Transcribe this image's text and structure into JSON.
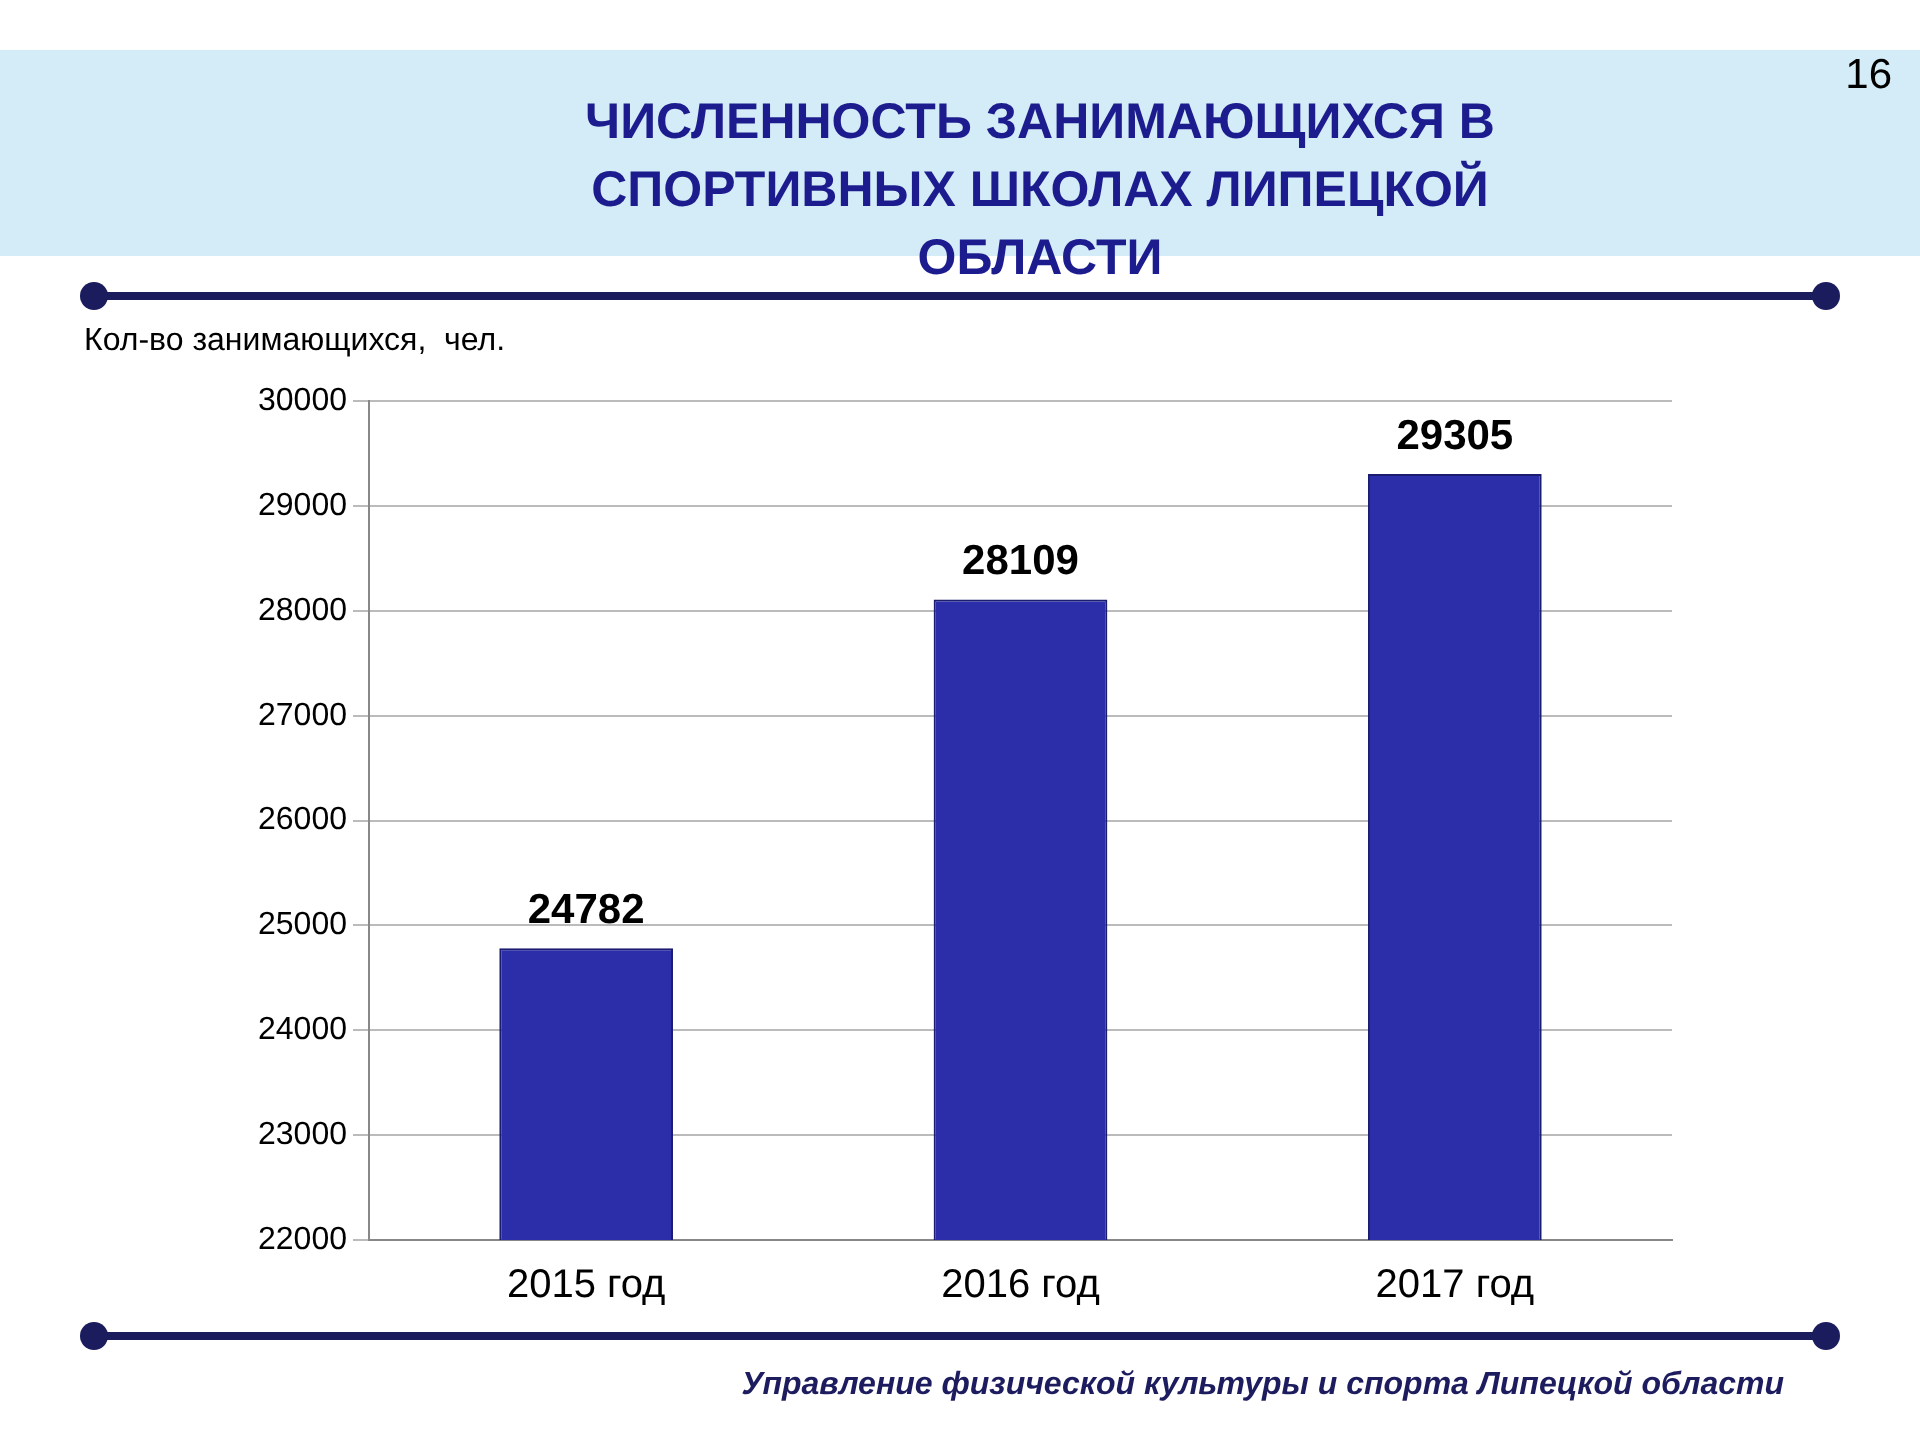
{
  "chart_data": {
    "type": "bar",
    "title": "ЧИСЛЕННОСТЬ ЗАНИМАЮЩИХСЯ В СПОРТИВНЫХ ШКОЛАХ ЛИПЕЦКОЙ ОБЛАСТИ",
    "ylabel": "Кол-во занимающихся,  чел.",
    "categories": [
      "2015 год",
      "2016 год",
      "2017 год"
    ],
    "values": [
      24782,
      28109,
      29305
    ],
    "color": "#2b2ea8",
    "ylim": [
      22000,
      30000
    ],
    "yticks": [
      22000,
      23000,
      24000,
      25000,
      26000,
      27000,
      28000,
      29000,
      30000
    ],
    "grid": "y",
    "data_labels": true,
    "annotations": [
      "16",
      "Управление физической культуры и спорта Липецкой области"
    ]
  }
}
